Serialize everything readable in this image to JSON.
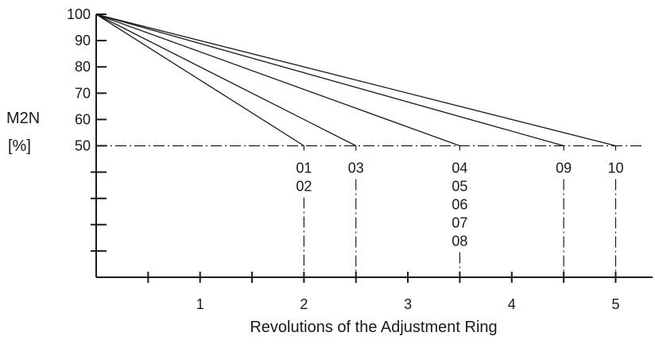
{
  "chart_data": {
    "type": "line",
    "xlabel": "Revolutions of the Adjustment Ring",
    "ylabel_main": "M2N",
    "ylabel_unit": "[%]",
    "xlim": [
      0,
      5.3
    ],
    "ylim": [
      0,
      100
    ],
    "x_ticks_major": [
      1,
      2,
      3,
      4,
      5
    ],
    "x_ticks_minor": [
      0.5,
      1.5,
      2.5,
      3.5,
      4.5
    ],
    "y_tick_labels": [
      50,
      60,
      70,
      80,
      90,
      100
    ],
    "y_ticks_unlabeled": [
      10,
      20,
      30,
      40
    ],
    "reference_level": 50,
    "series": [
      {
        "x": [
          0,
          2.0
        ],
        "y": [
          100,
          50
        ]
      },
      {
        "x": [
          0,
          2.5
        ],
        "y": [
          100,
          50
        ]
      },
      {
        "x": [
          0,
          3.5
        ],
        "y": [
          100,
          50
        ]
      },
      {
        "x": [
          0,
          4.5
        ],
        "y": [
          100,
          50
        ]
      },
      {
        "x": [
          0,
          5.0
        ],
        "y": [
          100,
          50
        ]
      }
    ],
    "endpoint_labels": [
      {
        "x": 2.0,
        "labels": [
          "01",
          "02"
        ]
      },
      {
        "x": 2.5,
        "labels": [
          "03"
        ]
      },
      {
        "x": 3.5,
        "labels": [
          "04",
          "05",
          "06",
          "07",
          "08"
        ]
      },
      {
        "x": 4.5,
        "labels": [
          "09"
        ]
      },
      {
        "x": 5.0,
        "labels": [
          "10"
        ]
      }
    ]
  }
}
